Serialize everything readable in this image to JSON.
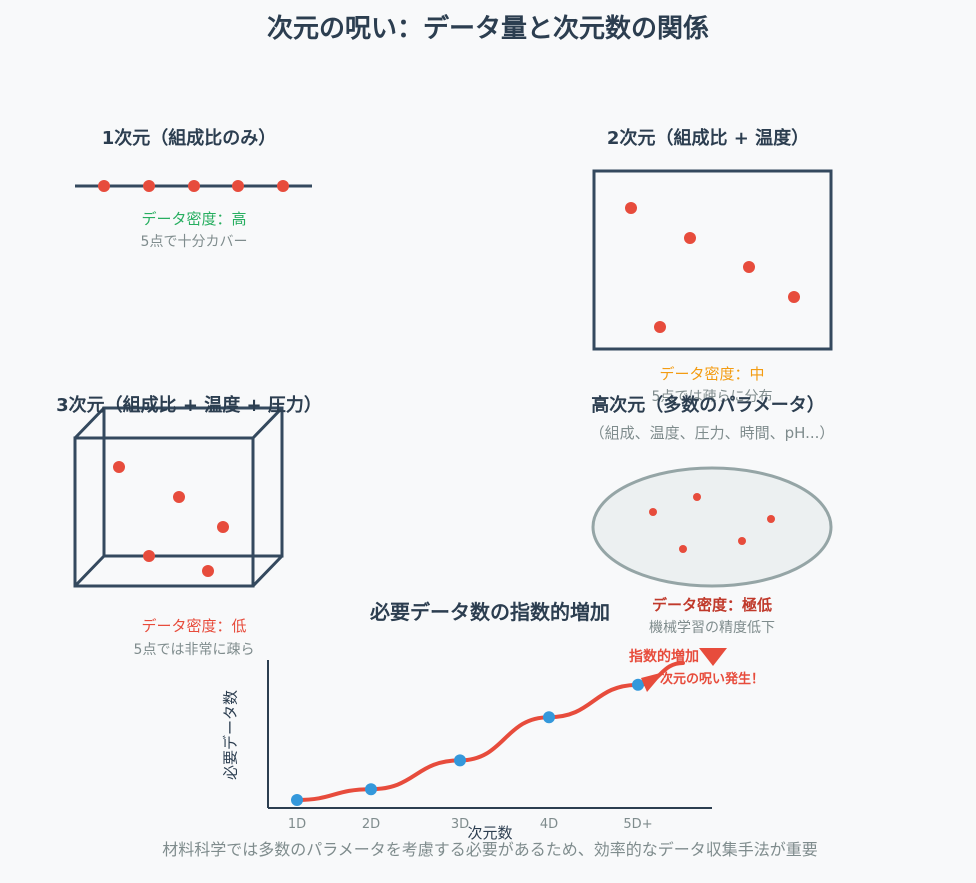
{
  "title": "次元の呪い：データ量と次元数の関係",
  "panels": {
    "d1": {
      "title": "1次元（組成比のみ）",
      "density": "データ密度：高",
      "note": "5点で十分カバー"
    },
    "d2": {
      "title": "2次元（組成比 + 温度）",
      "density": "データ密度：中",
      "note": "5点では疎らに分布"
    },
    "d3": {
      "title": "3次元（組成比 + 温度 + 圧力）",
      "density": "データ密度：低",
      "note": "5点では非常に疎ら"
    },
    "high": {
      "title": "高次元（多数のパラメータ）",
      "params": "（組成、温度、圧力、時間、pH...）",
      "density": "データ密度：極低",
      "note": "機械学習の精度低下"
    }
  },
  "colors": {
    "text": "#2c3e50",
    "point": "#e74c3c",
    "high": "#27ae60",
    "mid": "#f39c12",
    "low": "#e74c3c",
    "very_low": "#c0392b",
    "curve_point": "#3498db"
  },
  "chart_data": {
    "type": "line",
    "title": "必要データ数の指数的増加",
    "xlabel": "次元数",
    "ylabel": "必要データ数",
    "categories": [
      "1D",
      "2D",
      "3D",
      "4D",
      "5D+"
    ],
    "values": [
      1,
      4,
      12,
      24,
      33
    ],
    "annotations": [
      "指数的増加",
      "次元の呪い発生！"
    ]
  },
  "footer": "材料科学では多数のパラメータを考慮する必要があるため、効率的なデータ収集手法が重要"
}
